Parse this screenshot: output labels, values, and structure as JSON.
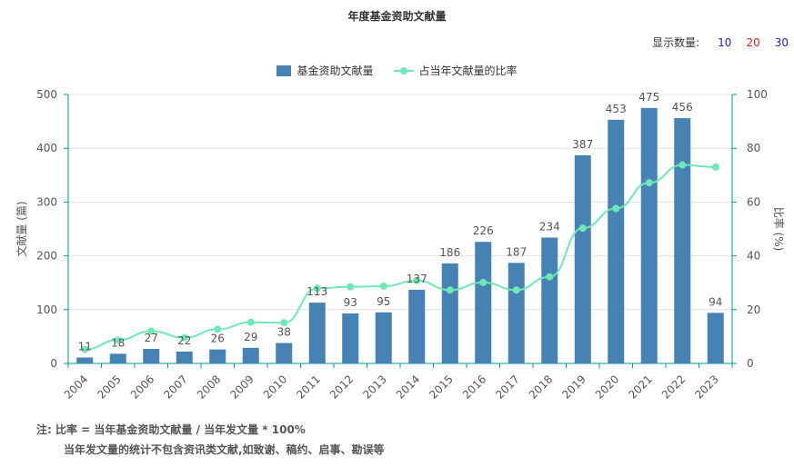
{
  "title": "年度基金资助文献量",
  "count_switch": {
    "label": "显示数量:",
    "options": [
      {
        "label": "10",
        "color": "#2222cc"
      },
      {
        "label": "20",
        "color": "#dd2222"
      },
      {
        "label": "30",
        "color": "#2222aa"
      }
    ]
  },
  "notes": {
    "line1": "注:  比率 = 当年基金资助文献量 / 当年发文量 * 100%",
    "line2": "当年发文量的统计不包含资讯类文献,如致谢、稿约、启事、勘误等"
  },
  "colors": {
    "bar": "#4682b4",
    "line": "#6ee8b6",
    "axis": "#009999",
    "grid": "#e0e0e0",
    "text": "#555555"
  },
  "chart_data": {
    "type": "bar",
    "categories": [
      "2004",
      "2005",
      "2006",
      "2007",
      "2008",
      "2009",
      "2010",
      "2011",
      "2012",
      "2013",
      "2014",
      "2015",
      "2016",
      "2017",
      "2018",
      "2019",
      "2020",
      "2021",
      "2022",
      "2023"
    ],
    "series": [
      {
        "name": "基金资助文献量",
        "type": "bar",
        "axis": "left",
        "values": [
          11,
          18,
          27,
          22,
          26,
          29,
          38,
          113,
          93,
          95,
          137,
          186,
          226,
          187,
          234,
          387,
          453,
          475,
          456,
          94
        ]
      },
      {
        "name": "占当年文献量的比率",
        "type": "line",
        "axis": "right",
        "values": [
          5.2,
          8.7,
          12.0,
          9.6,
          12.7,
          15.3,
          15.1,
          27.9,
          28.5,
          28.7,
          30.8,
          27.3,
          30.1,
          27.3,
          32.2,
          50.3,
          57.6,
          67.2,
          73.8,
          73.0
        ]
      }
    ],
    "ylabel_left": "文献量 (篇)",
    "ylabel_right": "比率 (%)",
    "ylim_left": [
      0,
      500
    ],
    "yticks_left": [
      0,
      100,
      200,
      300,
      400,
      500
    ],
    "ylim_right": [
      0,
      100
    ],
    "yticks_right": [
      0,
      20,
      40,
      60,
      80,
      100
    ],
    "grid": true,
    "legend": "top-center"
  }
}
